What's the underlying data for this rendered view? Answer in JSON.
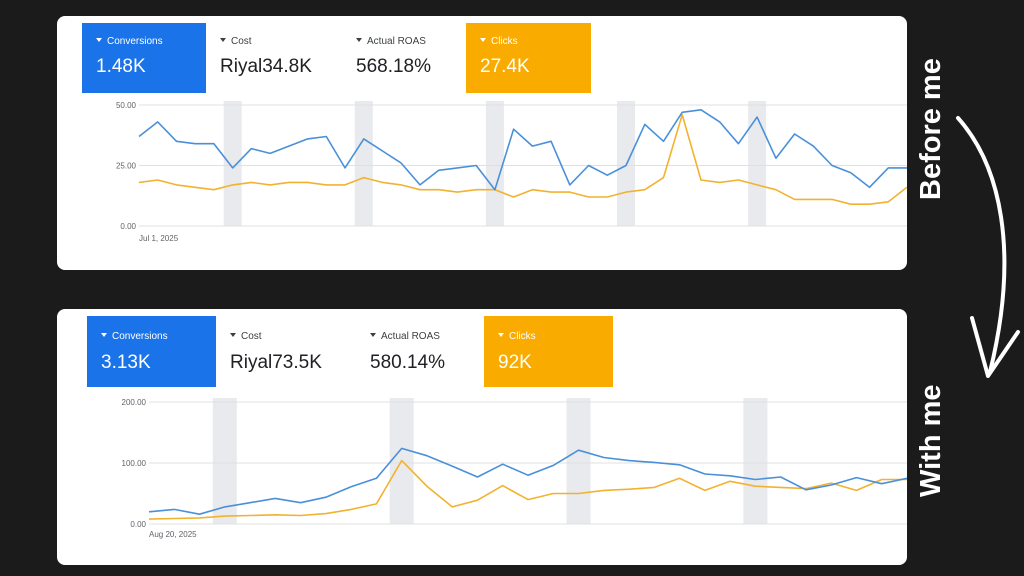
{
  "side_labels": {
    "before": "Before me",
    "after": "With me"
  },
  "colors": {
    "conversions": "#1a73e8",
    "clicks": "#f9ab00",
    "line_conversions": "#4a90d9",
    "line_clicks": "#f2b230",
    "weekend_band": "#e8eaed",
    "grid": "#e0e0e0",
    "arrow": "#ffffff"
  },
  "panels": {
    "before": {
      "metrics": [
        {
          "label": "Conversions",
          "value": "1.48K",
          "accent": "blue"
        },
        {
          "label": "Cost",
          "value": "Riyal34.8K",
          "accent": "none"
        },
        {
          "label": "Actual ROAS",
          "value": "568.18%",
          "accent": "none"
        },
        {
          "label": "Clicks",
          "value": "27.4K",
          "accent": "orange"
        }
      ]
    },
    "after": {
      "metrics": [
        {
          "label": "Conversions",
          "value": "3.13K",
          "accent": "blue"
        },
        {
          "label": "Cost",
          "value": "Riyal73.5K",
          "accent": "none"
        },
        {
          "label": "Actual ROAS",
          "value": "580.14%",
          "accent": "none"
        },
        {
          "label": "Clicks",
          "value": "92K",
          "accent": "orange"
        }
      ]
    }
  },
  "chart_data": [
    {
      "type": "line",
      "title": "",
      "xlabel": "",
      "ylabel": "",
      "x_start_label": "Jul 1, 2025",
      "yticks": [
        "0.00",
        "25.00",
        "50.00"
      ],
      "ylim": [
        0,
        50
      ],
      "grid": true,
      "weekend_band_indices": [
        5,
        12,
        19,
        26,
        33
      ],
      "series": [
        {
          "values": [
            37,
            43,
            35,
            34,
            34,
            24,
            32,
            30,
            33,
            36,
            37,
            24,
            36,
            31,
            26,
            17,
            23,
            24,
            25,
            15,
            40,
            33,
            35,
            17,
            25,
            21,
            25,
            42,
            35,
            47,
            48,
            43,
            34,
            45,
            28,
            38,
            33,
            25,
            22,
            16,
            24,
            24
          ]
        },
        {
          "values": [
            18,
            19,
            17,
            16,
            15,
            17,
            18,
            17,
            18,
            18,
            17,
            17,
            20,
            18,
            17,
            15,
            15,
            14,
            15,
            15,
            12,
            15,
            14,
            14,
            12,
            12,
            14,
            15,
            20,
            46,
            19,
            18,
            19,
            17,
            15,
            11,
            11,
            11,
            9,
            9,
            10,
            16
          ]
        }
      ]
    },
    {
      "type": "line",
      "title": "",
      "xlabel": "",
      "ylabel": "",
      "x_start_label": "Aug 20, 2025",
      "yticks": [
        "0.00",
        "100.00",
        "200.00"
      ],
      "ylim": [
        0,
        200
      ],
      "grid": true,
      "weekend_band_indices": [
        3,
        10,
        17,
        24
      ],
      "series": [
        {
          "values": [
            20,
            24,
            16,
            28,
            35,
            42,
            35,
            44,
            61,
            75,
            124,
            112,
            95,
            77,
            98,
            80,
            96,
            121,
            109,
            104,
            101,
            97,
            82,
            79,
            73,
            77,
            56,
            64,
            76,
            66,
            75
          ]
        },
        {
          "values": [
            8,
            9,
            10,
            13,
            14,
            15,
            14,
            17,
            24,
            33,
            104,
            62,
            28,
            39,
            63,
            40,
            50,
            50,
            55,
            57,
            60,
            75,
            55,
            70,
            62,
            60,
            58,
            67,
            55,
            73,
            73
          ]
        }
      ]
    }
  ]
}
